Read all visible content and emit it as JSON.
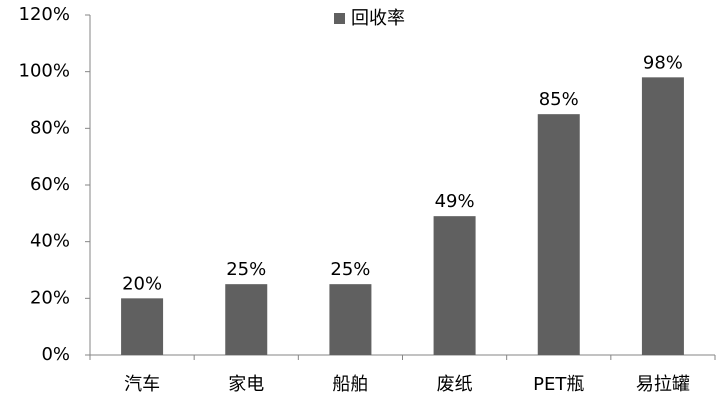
{
  "chart_data": {
    "type": "bar",
    "categories": [
      "汽车",
      "家电",
      "船舶",
      "废纸",
      "PET瓶",
      "易拉罐"
    ],
    "series": [
      {
        "name": "回收率",
        "color": "#606060",
        "values": [
          20,
          25,
          25,
          49,
          85,
          98
        ],
        "value_labels": [
          "20%",
          "25%",
          "25%",
          "49%",
          "85%",
          "98%"
        ]
      }
    ],
    "ylim": [
      0,
      120
    ],
    "yticks": [
      {
        "value": 0,
        "label": "0%"
      },
      {
        "value": 20,
        "label": "20%"
      },
      {
        "value": 40,
        "label": "40%"
      },
      {
        "value": 60,
        "label": "60%"
      },
      {
        "value": 80,
        "label": "80%"
      },
      {
        "value": 100,
        "label": "100%"
      },
      {
        "value": 120,
        "label": "120%"
      }
    ],
    "grid": false,
    "legend": "top"
  }
}
